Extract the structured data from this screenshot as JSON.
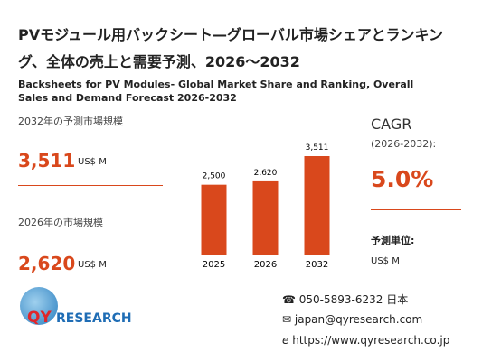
{
  "title": "PVモジュール用バックシート—グローバル市場シェアとランキング、全体の売上と需要予測、2026～2032",
  "subtitle": "Backsheets for PV Modules- Global Market Share and Ranking, Overall Sales and Demand Forecast 2026-2032",
  "forecast": {
    "label": "2032年の予測市場規模",
    "value": "3,511",
    "unit": "US$ M"
  },
  "current": {
    "label": "2026年の市場規模",
    "value": "2,620",
    "unit": "US$ M"
  },
  "cagr": {
    "label": "CAGR",
    "period": "(2026-2032):",
    "value": "5.0%"
  },
  "forecast_unit": {
    "label": "予測単位:",
    "value": "US$ M"
  },
  "logo": {
    "part1": "QY",
    "part2": "RESEARCH"
  },
  "contact": {
    "phone": "050-5893-6232 日本",
    "email": "japan@qyresearch.com",
    "url": "https://www.qyresearch.co.jp"
  },
  "chart_data": {
    "type": "bar",
    "categories": [
      "2025",
      "2026",
      "2032"
    ],
    "values": [
      2500,
      2620,
      3511
    ],
    "value_labels": [
      "2,500",
      "2,620",
      "3,511"
    ],
    "color": "#d9481c"
  }
}
